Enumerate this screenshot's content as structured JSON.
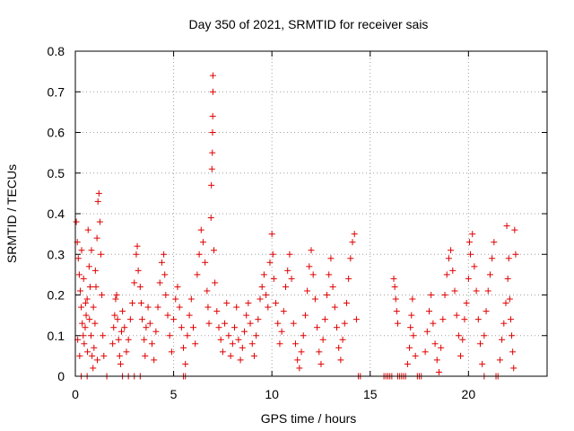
{
  "chart_data": {
    "type": "scatter",
    "title": "Day 350 of 2021, SRMTID for receiver sais",
    "xlabel": "GPS time / hours",
    "ylabel": "SRMTID / TECUs",
    "xlim": [
      0,
      24
    ],
    "ylim": [
      0,
      0.8
    ],
    "xticks": [
      0,
      5,
      10,
      15,
      20
    ],
    "yticks": [
      0,
      0.1,
      0.2,
      0.3,
      0.4,
      0.5,
      0.6,
      0.7,
      0.8
    ],
    "xtick_labels": [
      "0",
      "5",
      "10",
      "15",
      "20"
    ],
    "ytick_labels": [
      "0",
      "0.1",
      "0.2",
      "0.3",
      "0.4",
      "0.5",
      "0.6",
      "0.7",
      "0.8"
    ],
    "grid": true,
    "marker": "+",
    "color": "#e00000",
    "series": [
      {
        "name": "SRMTID",
        "points": [
          [
            0.05,
            0.38
          ],
          [
            0.1,
            0.33
          ],
          [
            0.15,
            0.29
          ],
          [
            0.2,
            0.25
          ],
          [
            0.25,
            0.21
          ],
          [
            0.3,
            0.17
          ],
          [
            0.35,
            0.13
          ],
          [
            0.4,
            0.1
          ],
          [
            0.45,
            0.08
          ],
          [
            0.5,
            0.12
          ],
          [
            0.55,
            0.15
          ],
          [
            0.6,
            0.19
          ],
          [
            0.65,
            0.36
          ],
          [
            0.7,
            0.27
          ],
          [
            0.75,
            0.22
          ],
          [
            0.8,
            0.1
          ],
          [
            0.85,
            0.05
          ],
          [
            0.9,
            0.02
          ],
          [
            0.95,
            0.07
          ],
          [
            1.0,
            0.13
          ],
          [
            1.05,
            0.22
          ],
          [
            1.1,
            0.34
          ],
          [
            1.15,
            0.43
          ],
          [
            1.2,
            0.45
          ],
          [
            1.25,
            0.38
          ],
          [
            1.3,
            0.3
          ],
          [
            1.35,
            0.2
          ],
          [
            1.4,
            0.1
          ],
          [
            1.45,
            0.05
          ],
          [
            0.12,
            0.09
          ],
          [
            0.22,
            0.05
          ],
          [
            0.32,
            0.31
          ],
          [
            0.42,
            0.24
          ],
          [
            0.52,
            0.18
          ],
          [
            0.62,
            0.06
          ],
          [
            0.72,
            0.14
          ],
          [
            0.82,
            0.31
          ],
          [
            0.92,
            0.17
          ],
          [
            1.02,
            0.26
          ],
          [
            1.12,
            0.04
          ],
          [
            1.9,
            0.08
          ],
          [
            1.95,
            0.12
          ],
          [
            2.0,
            0.15
          ],
          [
            2.05,
            0.19
          ],
          [
            2.1,
            0.2
          ],
          [
            2.15,
            0.14
          ],
          [
            2.2,
            0.09
          ],
          [
            2.25,
            0.05
          ],
          [
            2.3,
            0.03
          ],
          [
            2.35,
            0.11
          ],
          [
            2.4,
            0.16
          ],
          [
            2.5,
            0.12
          ],
          [
            2.6,
            0.06
          ],
          [
            2.7,
            0.09
          ],
          [
            2.8,
            0.14
          ],
          [
            2.9,
            0.18
          ],
          [
            3.0,
            0.23
          ],
          [
            3.1,
            0.3
          ],
          [
            3.15,
            0.32
          ],
          [
            3.2,
            0.26
          ],
          [
            3.3,
            0.22
          ],
          [
            3.35,
            0.18
          ],
          [
            3.4,
            0.14
          ],
          [
            3.5,
            0.09
          ],
          [
            3.55,
            0.05
          ],
          [
            3.6,
            0.12
          ],
          [
            3.7,
            0.17
          ],
          [
            3.8,
            0.13
          ],
          [
            3.9,
            0.08
          ],
          [
            4.0,
            0.04
          ],
          [
            4.1,
            0.11
          ],
          [
            4.2,
            0.17
          ],
          [
            4.3,
            0.23
          ],
          [
            4.4,
            0.28
          ],
          [
            4.5,
            0.3
          ],
          [
            4.55,
            0.25
          ],
          [
            4.6,
            0.2
          ],
          [
            4.7,
            0.15
          ],
          [
            4.8,
            0.1
          ],
          [
            4.9,
            0.06
          ],
          [
            5.0,
            0.14
          ],
          [
            5.1,
            0.19
          ],
          [
            5.2,
            0.22
          ],
          [
            5.3,
            0.17
          ],
          [
            5.4,
            0.12
          ],
          [
            5.5,
            0.07
          ],
          [
            5.6,
            0.03
          ],
          [
            5.7,
            0.1
          ],
          [
            5.8,
            0.15
          ],
          [
            5.9,
            0.19
          ],
          [
            6.0,
            0.12
          ],
          [
            6.1,
            0.08
          ],
          [
            6.2,
            0.25
          ],
          [
            6.3,
            0.3
          ],
          [
            6.4,
            0.36
          ],
          [
            6.5,
            0.33
          ],
          [
            6.6,
            0.28
          ],
          [
            6.7,
            0.21
          ],
          [
            6.75,
            0.17
          ],
          [
            6.8,
            0.13
          ],
          [
            6.9,
            0.39
          ],
          [
            6.92,
            0.47
          ],
          [
            6.95,
            0.51
          ],
          [
            6.97,
            0.55
          ],
          [
            6.98,
            0.6
          ],
          [
            6.99,
            0.64
          ],
          [
            7.0,
            0.7
          ],
          [
            7.0,
            0.74
          ],
          [
            7.05,
            0.31
          ],
          [
            7.1,
            0.23
          ],
          [
            7.2,
            0.16
          ],
          [
            7.3,
            0.12
          ],
          [
            7.4,
            0.09
          ],
          [
            7.5,
            0.06
          ],
          [
            7.6,
            0.13
          ],
          [
            7.7,
            0.18
          ],
          [
            7.8,
            0.1
          ],
          [
            7.9,
            0.05
          ],
          [
            8.0,
            0.08
          ],
          [
            8.1,
            0.12
          ],
          [
            8.2,
            0.17
          ],
          [
            8.3,
            0.09
          ],
          [
            8.4,
            0.04
          ],
          [
            8.5,
            0.07
          ],
          [
            8.6,
            0.11
          ],
          [
            8.7,
            0.15
          ],
          [
            8.8,
            0.18
          ],
          [
            8.9,
            0.13
          ],
          [
            9.0,
            0.08
          ],
          [
            9.1,
            0.05
          ],
          [
            9.2,
            0.1
          ],
          [
            9.3,
            0.14
          ],
          [
            9.4,
            0.19
          ],
          [
            9.5,
            0.22
          ],
          [
            9.6,
            0.25
          ],
          [
            9.7,
            0.2
          ],
          [
            9.8,
            0.17
          ],
          [
            9.9,
            0.28
          ],
          [
            10.0,
            0.35
          ],
          [
            10.05,
            0.3
          ],
          [
            10.1,
            0.24
          ],
          [
            10.2,
            0.18
          ],
          [
            10.3,
            0.13
          ],
          [
            10.4,
            0.08
          ],
          [
            10.5,
            0.11
          ],
          [
            10.6,
            0.16
          ],
          [
            10.7,
            0.22
          ],
          [
            10.8,
            0.26
          ],
          [
            10.9,
            0.3
          ],
          [
            11.0,
            0.24
          ],
          [
            11.1,
            0.13
          ],
          [
            11.2,
            0.08
          ],
          [
            11.3,
            0.04
          ],
          [
            11.4,
            0.02
          ],
          [
            11.5,
            0.06
          ],
          [
            11.6,
            0.1
          ],
          [
            11.7,
            0.15
          ],
          [
            11.8,
            0.21
          ],
          [
            11.9,
            0.27
          ],
          [
            12.0,
            0.31
          ],
          [
            12.1,
            0.25
          ],
          [
            12.2,
            0.19
          ],
          [
            12.3,
            0.12
          ],
          [
            12.4,
            0.06
          ],
          [
            12.5,
            0.03
          ],
          [
            12.6,
            0.09
          ],
          [
            12.7,
            0.14
          ],
          [
            12.8,
            0.2
          ],
          [
            12.9,
            0.25
          ],
          [
            13.0,
            0.29
          ],
          [
            13.1,
            0.22
          ],
          [
            13.2,
            0.17
          ],
          [
            13.3,
            0.12
          ],
          [
            13.4,
            0.07
          ],
          [
            13.5,
            0.04
          ],
          [
            13.6,
            0.09
          ],
          [
            13.7,
            0.13
          ],
          [
            13.8,
            0.18
          ],
          [
            13.9,
            0.24
          ],
          [
            14.0,
            0.29
          ],
          [
            14.1,
            0.33
          ],
          [
            14.2,
            0.35
          ],
          [
            14.3,
            0.14
          ],
          [
            14.4,
            0.0
          ],
          [
            15.8,
            0.0
          ],
          [
            15.9,
            0.0
          ],
          [
            16.0,
            0.0
          ],
          [
            16.1,
            0.0
          ],
          [
            16.2,
            0.24
          ],
          [
            16.25,
            0.22
          ],
          [
            16.3,
            0.19
          ],
          [
            16.35,
            0.16
          ],
          [
            16.4,
            0.13
          ],
          [
            16.5,
            0.0
          ],
          [
            16.6,
            0.0
          ],
          [
            16.7,
            0.0
          ],
          [
            16.8,
            0.0
          ],
          [
            16.9,
            0.03
          ],
          [
            17.0,
            0.07
          ],
          [
            17.05,
            0.12
          ],
          [
            17.1,
            0.15
          ],
          [
            17.15,
            0.19
          ],
          [
            17.2,
            0.1
          ],
          [
            17.3,
            0.05
          ],
          [
            17.4,
            0.0
          ],
          [
            17.5,
            0.0
          ],
          [
            17.6,
            0.0
          ],
          [
            17.8,
            0.06
          ],
          [
            17.9,
            0.11
          ],
          [
            18.0,
            0.16
          ],
          [
            18.1,
            0.2
          ],
          [
            18.2,
            0.13
          ],
          [
            18.3,
            0.08
          ],
          [
            18.4,
            0.04
          ],
          [
            18.5,
            0.01
          ],
          [
            18.6,
            0.07
          ],
          [
            18.7,
            0.14
          ],
          [
            18.8,
            0.2
          ],
          [
            18.9,
            0.25
          ],
          [
            19.0,
            0.29
          ],
          [
            19.1,
            0.31
          ],
          [
            19.2,
            0.26
          ],
          [
            19.3,
            0.21
          ],
          [
            19.4,
            0.15
          ],
          [
            19.5,
            0.1
          ],
          [
            19.6,
            0.05
          ],
          [
            19.7,
            0.09
          ],
          [
            19.8,
            0.14
          ],
          [
            19.9,
            0.18
          ],
          [
            20.0,
            0.24
          ],
          [
            20.05,
            0.33
          ],
          [
            20.1,
            0.3
          ],
          [
            20.2,
            0.35
          ],
          [
            20.3,
            0.27
          ],
          [
            20.4,
            0.21
          ],
          [
            20.5,
            0.14
          ],
          [
            20.6,
            0.08
          ],
          [
            20.7,
            0.03
          ],
          [
            20.8,
            0.1
          ],
          [
            20.9,
            0.16
          ],
          [
            21.0,
            0.21
          ],
          [
            21.1,
            0.25
          ],
          [
            21.2,
            0.29
          ],
          [
            21.3,
            0.33
          ],
          [
            21.4,
            0.0
          ],
          [
            21.5,
            0.0
          ],
          [
            21.6,
            0.04
          ],
          [
            21.7,
            0.09
          ],
          [
            21.8,
            0.13
          ],
          [
            21.9,
            0.18
          ],
          [
            21.95,
            0.37
          ],
          [
            22.0,
            0.24
          ],
          [
            22.05,
            0.29
          ],
          [
            22.1,
            0.19
          ],
          [
            22.15,
            0.14
          ],
          [
            22.2,
            0.1
          ],
          [
            22.25,
            0.06
          ],
          [
            22.3,
            0.02
          ],
          [
            22.35,
            0.36
          ],
          [
            22.4,
            0.3
          ],
          [
            0.3,
            0.0
          ],
          [
            0.6,
            0.0
          ],
          [
            1.6,
            0.0
          ],
          [
            2.4,
            0.0
          ],
          [
            2.7,
            0.0
          ],
          [
            3.0,
            0.0
          ],
          [
            3.3,
            0.0
          ],
          [
            5.5,
            0.0
          ],
          [
            5.6,
            0.0
          ],
          [
            14.5,
            0.0
          ],
          [
            15.7,
            0.0
          ],
          [
            16.4,
            0.0
          ],
          [
            20.8,
            0.0
          ]
        ]
      }
    ]
  }
}
